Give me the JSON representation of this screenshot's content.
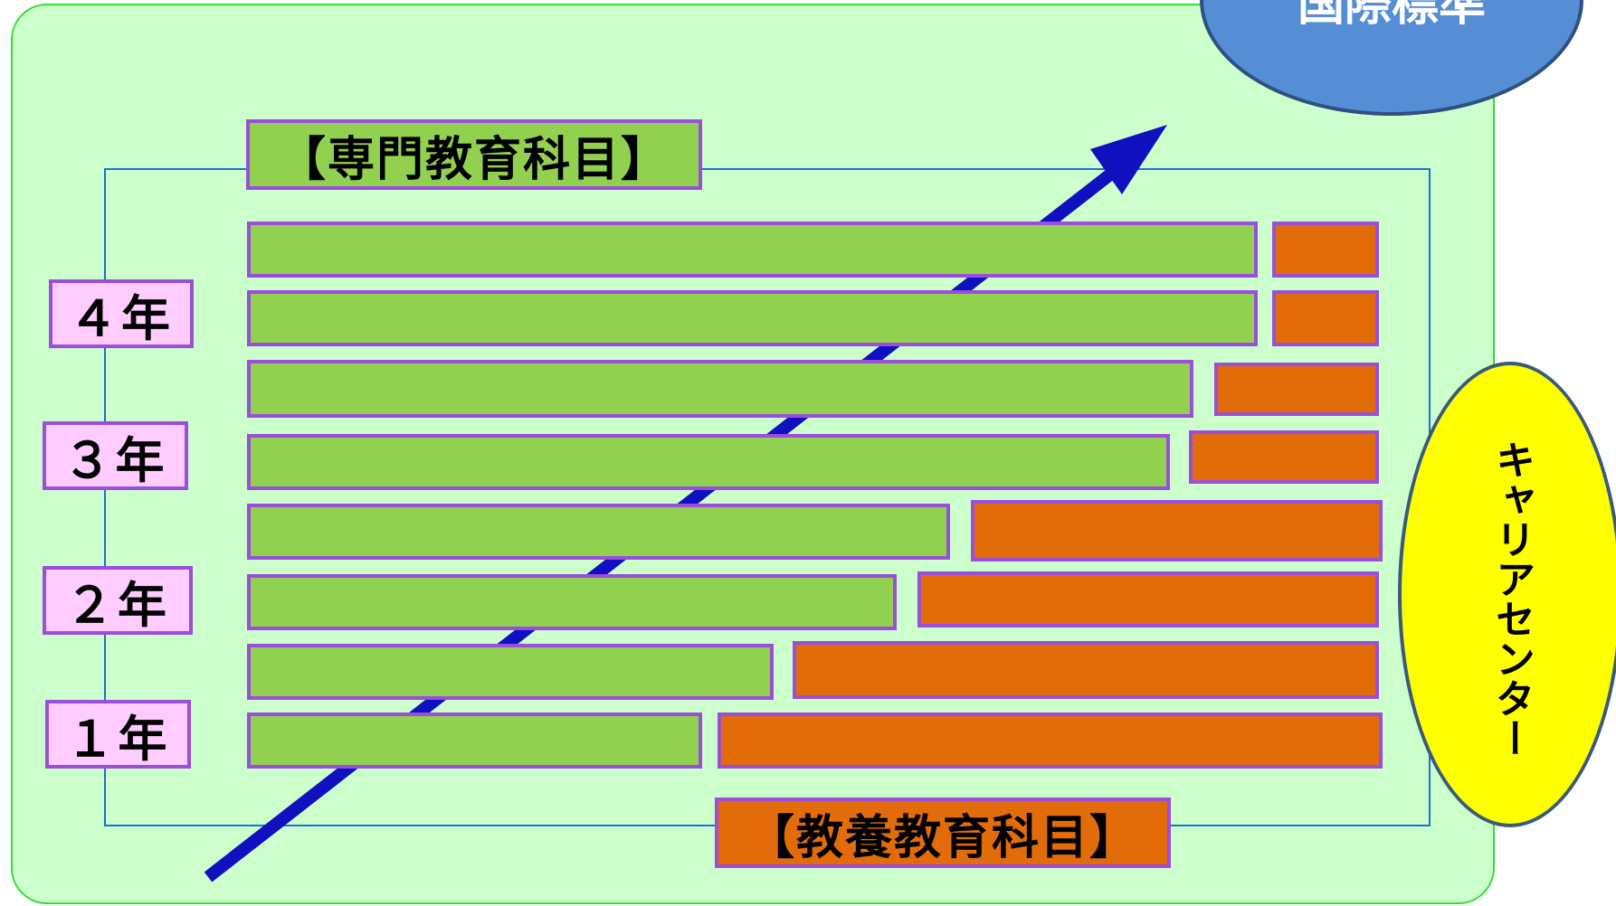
{
  "labels": {
    "specialized": "【専門教育科目】",
    "liberal": "【教養教育科目】",
    "career_center": "キャリアセンター",
    "top_ellipse": "国際標準"
  },
  "years": [
    "４年",
    "３年",
    "２年",
    "１年"
  ],
  "rows_note": "",
  "colors": {
    "panel": "#ccffcc",
    "panel_border": "#33dd33",
    "frame": "#1f6fd6",
    "specialized_bar": "#92d050",
    "liberal_bar": "#e36c0a",
    "bar_border": "#9b4ddb",
    "year_box": "#ffccff",
    "arrow": "#1010c0",
    "career_ellipse": "#ffff00",
    "top_ellipse": "#558ed5"
  }
}
